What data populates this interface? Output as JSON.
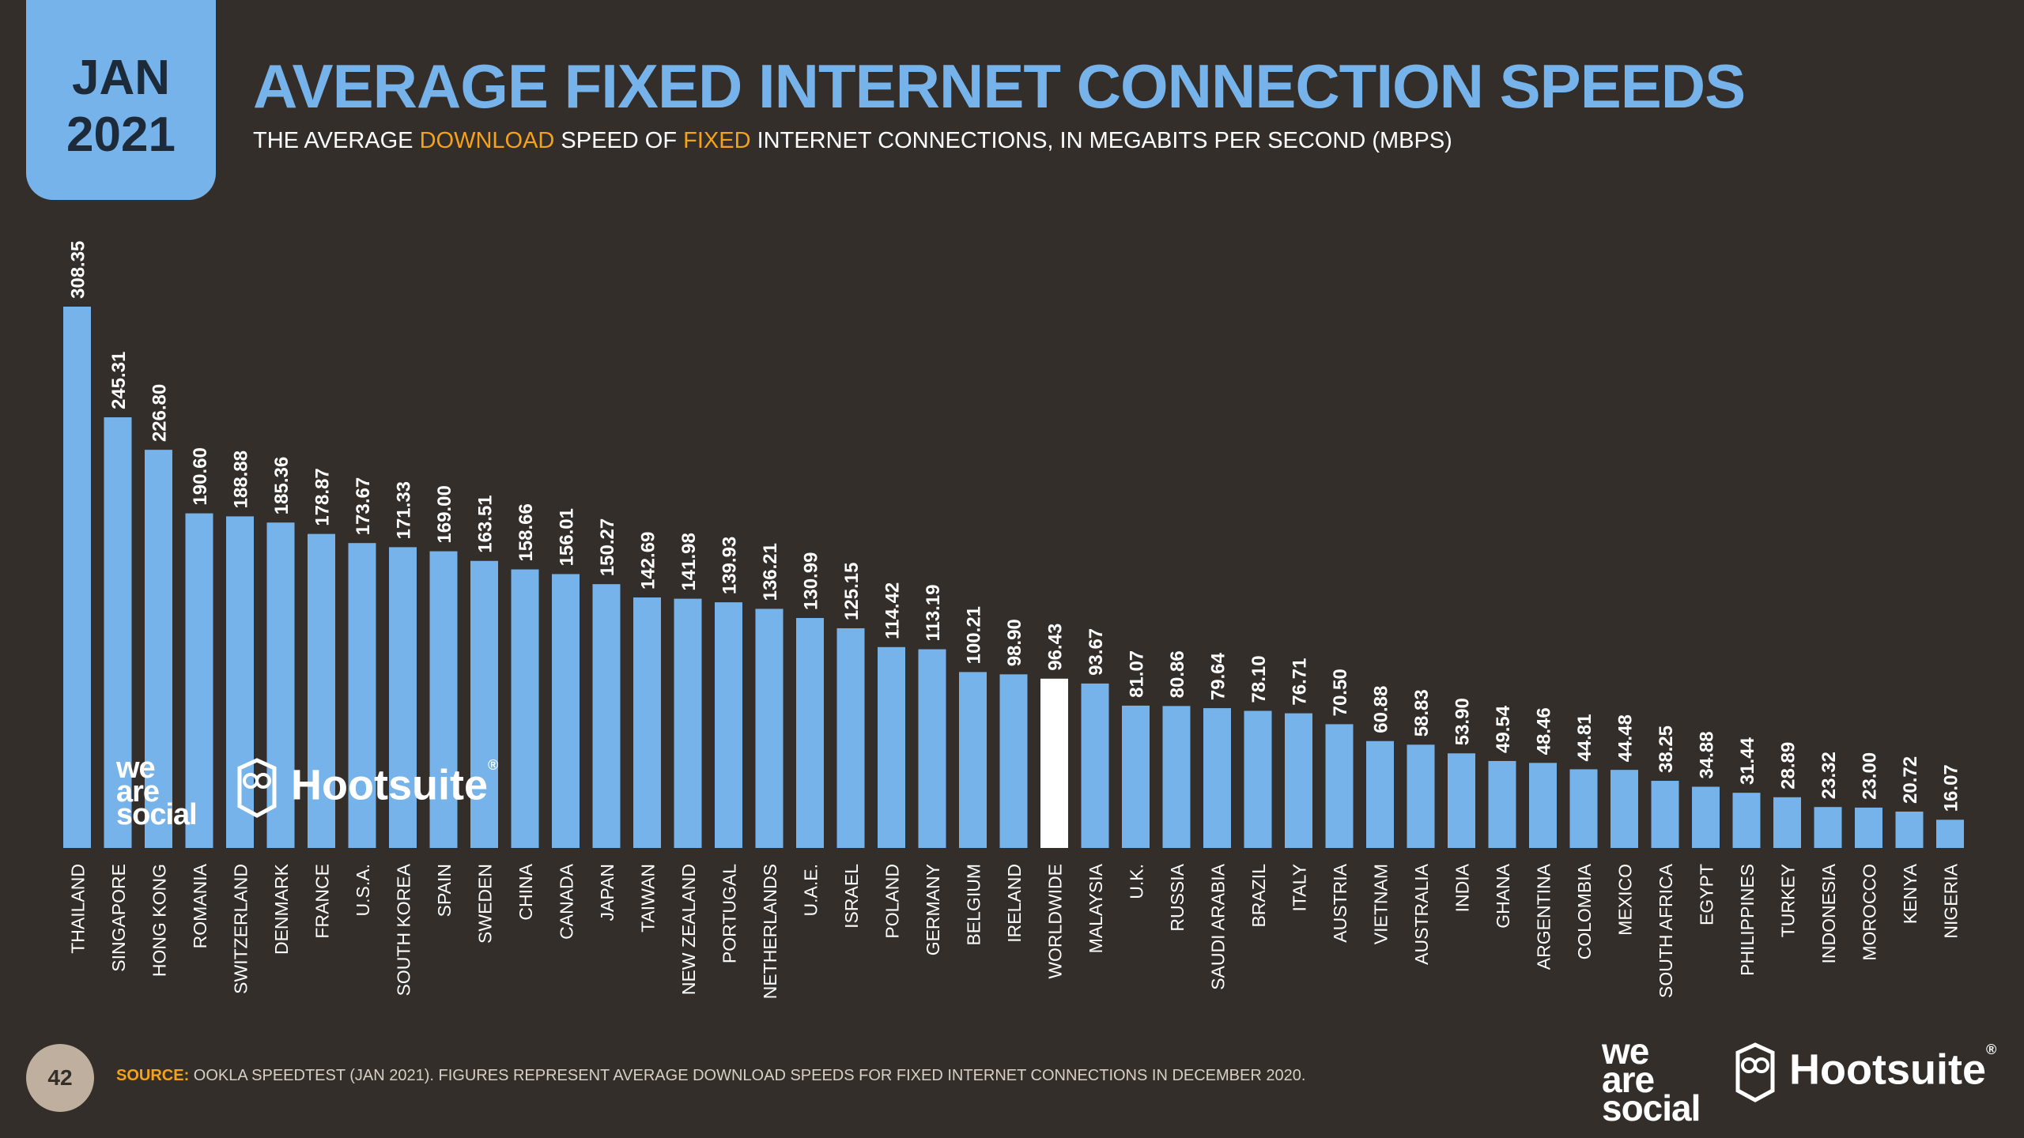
{
  "header": {
    "month": "JAN",
    "year": "2021",
    "title": "AVERAGE FIXED INTERNET CONNECTION SPEEDS",
    "subtitle_parts": [
      "THE AVERAGE ",
      "DOWNLOAD",
      " SPEED OF ",
      "FIXED",
      " INTERNET CONNECTIONS, IN MEGABITS PER SECOND (MBPS)"
    ]
  },
  "footer": {
    "page_number": "42",
    "source_label": "SOURCE:",
    "source_text": " OOKLA SPEEDTEST (JAN 2021). FIGURES REPRESENT AVERAGE DOWNLOAD SPEEDS FOR FIXED INTERNET CONNECTIONS IN DECEMBER 2020."
  },
  "logos": {
    "we_are_social": [
      "we",
      "are",
      "social"
    ],
    "hootsuite": "Hootsuite",
    "registered": "®"
  },
  "colors": {
    "background": "#342e2a",
    "bar": "#76b3ea",
    "highlight_bar": "#ffffff",
    "accent": "#f5a21b"
  },
  "chart_data": {
    "type": "bar",
    "title": "AVERAGE FIXED INTERNET CONNECTION SPEEDS",
    "ylabel": "Mbps",
    "ylim": [
      0,
      308.35
    ],
    "highlight": "WORLDWIDE",
    "categories": [
      "THAILAND",
      "SINGAPORE",
      "HONG KONG",
      "ROMANIA",
      "SWITZERLAND",
      "DENMARK",
      "FRANCE",
      "U.S.A.",
      "SOUTH KOREA",
      "SPAIN",
      "SWEDEN",
      "CHINA",
      "CANADA",
      "JAPAN",
      "TAIWAN",
      "NEW ZEALAND",
      "PORTUGAL",
      "NETHERLANDS",
      "U.A.E.",
      "ISRAEL",
      "POLAND",
      "GERMANY",
      "BELGIUM",
      "IRELAND",
      "WORLDWIDE",
      "MALAYSIA",
      "U.K.",
      "RUSSIA",
      "SAUDI ARABIA",
      "BRAZIL",
      "ITALY",
      "AUSTRIA",
      "VIETNAM",
      "AUSTRALIA",
      "INDIA",
      "GHANA",
      "ARGENTINA",
      "COLOMBIA",
      "MEXICO",
      "SOUTH AFRICA",
      "EGYPT",
      "PHILIPPINES",
      "TURKEY",
      "INDONESIA",
      "MOROCCO",
      "KENYA",
      "NIGERIA"
    ],
    "values": [
      308.35,
      245.31,
      226.8,
      190.6,
      188.88,
      185.36,
      178.87,
      173.67,
      171.33,
      169.0,
      163.51,
      158.66,
      156.01,
      150.27,
      142.69,
      141.98,
      139.93,
      136.21,
      130.99,
      125.15,
      114.42,
      113.19,
      100.21,
      98.9,
      96.43,
      93.67,
      81.07,
      80.86,
      79.64,
      78.1,
      76.71,
      70.5,
      60.88,
      58.83,
      53.9,
      49.54,
      48.46,
      44.81,
      44.48,
      38.25,
      34.88,
      31.44,
      28.89,
      23.32,
      23.0,
      20.72,
      16.07
    ]
  }
}
